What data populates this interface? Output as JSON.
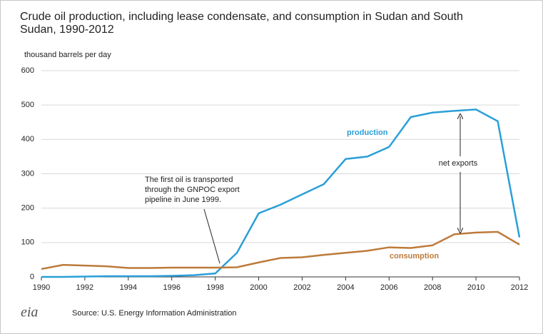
{
  "chart_data": {
    "type": "line",
    "title": "Crude oil production, including lease condensate, and consumption in Sudan and South Sudan, 1990-2012",
    "subtitle": "thousand barrels per day",
    "x": [
      1990,
      1991,
      1992,
      1993,
      1994,
      1995,
      1996,
      1997,
      1998,
      1999,
      2000,
      2001,
      2002,
      2003,
      2004,
      2005,
      2006,
      2007,
      2008,
      2009,
      2010,
      2011,
      2012
    ],
    "series": [
      {
        "name": "production",
        "color": "#2a9fd8",
        "values": [
          0,
          0,
          1,
          2,
          2,
          2,
          3,
          5,
          10,
          70,
          185,
          210,
          240,
          270,
          343,
          350,
          378,
          465,
          478,
          483,
          487,
          453,
          115
        ]
      },
      {
        "name": "consumption",
        "color": "#bd7a3a",
        "values": [
          23,
          35,
          33,
          31,
          26,
          26,
          27,
          27,
          27,
          28,
          42,
          55,
          57,
          64,
          70,
          76,
          86,
          84,
          92,
          124,
          129,
          131,
          94
        ]
      }
    ],
    "xlim": [
      1990,
      2012
    ],
    "xticks": [
      1990,
      1992,
      1994,
      1996,
      1998,
      2000,
      2002,
      2004,
      2006,
      2008,
      2010,
      2012
    ],
    "ylim": [
      0,
      600
    ],
    "yticks": [
      0,
      100,
      200,
      300,
      400,
      500,
      600
    ],
    "grid": true,
    "annotations": {
      "net_exports": "net exports",
      "first_oil": [
        "The first oil is transported",
        "through the GNPOC export",
        "pipeline in June 1999."
      ]
    },
    "source": "Source: U.S. Energy Information Administration",
    "logo": "eia"
  }
}
